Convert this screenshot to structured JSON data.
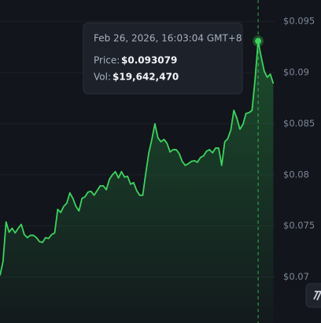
{
  "chart_data": {
    "type": "line",
    "color": "#3ed35d",
    "grid": true,
    "ylim": [
      0.0655,
      0.0971
    ],
    "yticks": [
      {
        "value": 0.095,
        "label": "$0.095"
      },
      {
        "value": 0.09,
        "label": "$0.09"
      },
      {
        "value": 0.085,
        "label": "$0.085"
      },
      {
        "value": 0.08,
        "label": "$0.08"
      },
      {
        "value": 0.075,
        "label": "$0.075"
      },
      {
        "value": 0.07,
        "label": "$0.07"
      }
    ],
    "values": [
      0.07015,
      0.07154,
      0.07538,
      0.07438,
      0.07477,
      0.07431,
      0.07477,
      0.07515,
      0.07415,
      0.07385,
      0.07408,
      0.07408,
      0.07385,
      0.07346,
      0.07338,
      0.07385,
      0.07377,
      0.07415,
      0.07431,
      0.07662,
      0.07631,
      0.07692,
      0.07723,
      0.07823,
      0.07769,
      0.07692,
      0.07646,
      0.07769,
      0.07785,
      0.07831,
      0.07838,
      0.078,
      0.07846,
      0.07892,
      0.07892,
      0.07854,
      0.07954,
      0.08,
      0.08031,
      0.07969,
      0.08031,
      0.07977,
      0.07985,
      0.07908,
      0.07923,
      0.07846,
      0.078,
      0.078,
      0.08015,
      0.08215,
      0.08346,
      0.085,
      0.08362,
      0.08323,
      0.08346,
      0.08308,
      0.08223,
      0.08246,
      0.08246,
      0.08208,
      0.08131,
      0.08092,
      0.08108,
      0.08131,
      0.08138,
      0.08123,
      0.08169,
      0.08185,
      0.08231,
      0.08246,
      0.08215,
      0.08262,
      0.08262,
      0.08092,
      0.08323,
      0.08354,
      0.08438,
      0.08631,
      0.08554,
      0.08446,
      0.08492,
      0.086,
      0.08608,
      0.08631,
      0.08938,
      0.093079,
      0.09154,
      0.09015,
      0.08954,
      0.08985,
      0.08892
    ],
    "tooltip": {
      "time": "Feb 26, 2026, 16:03:04 GMT+8",
      "price_label": "Price:",
      "price": "$0.093079",
      "volume_label": "Vol:",
      "volume": "$19,642,470"
    }
  }
}
